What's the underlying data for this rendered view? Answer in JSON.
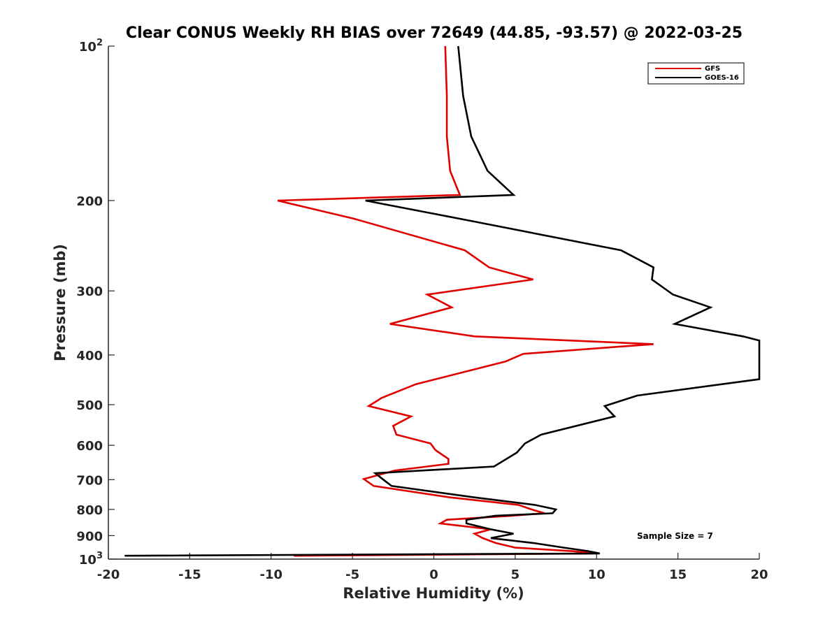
{
  "chart_data": {
    "type": "line",
    "title": "Clear CONUS Weekly RH BIAS over 72649 (44.85, -93.57) @ 2022-03-25",
    "xlabel": "Relative Humidity (%)",
    "ylabel": "Pressure (mb)",
    "xlim": [
      -20,
      20
    ],
    "ylim": [
      100,
      1000
    ],
    "yscale": "log",
    "y_reversed": true,
    "grid": false,
    "legend_position": "top-right",
    "x_ticks": [
      -20,
      -15,
      -10,
      -5,
      0,
      5,
      10,
      15,
      20
    ],
    "x_tick_labels": [
      "-20",
      "-15",
      "-10",
      "-5",
      "0",
      "5",
      "10",
      "15",
      "20"
    ],
    "y_ticks": [
      100,
      200,
      300,
      400,
      500,
      600,
      700,
      800,
      900,
      1000
    ],
    "y_tick_labels": [
      {
        "base": "10",
        "exp": "2"
      },
      {
        "base": "200",
        "exp": ""
      },
      {
        "base": "300",
        "exp": ""
      },
      {
        "base": "400",
        "exp": ""
      },
      {
        "base": "500",
        "exp": ""
      },
      {
        "base": "600",
        "exp": ""
      },
      {
        "base": "700",
        "exp": ""
      },
      {
        "base": "800",
        "exp": ""
      },
      {
        "base": "900",
        "exp": ""
      },
      {
        "base": "10",
        "exp": "3"
      }
    ],
    "annotation": "Sample Size = 7",
    "series": [
      {
        "name": "GFS",
        "color": "#e00000",
        "points": [
          [
            0.7,
            100
          ],
          [
            0.8,
            125
          ],
          [
            0.8,
            150
          ],
          [
            1.0,
            175
          ],
          [
            1.6,
            195
          ],
          [
            -9.6,
            200
          ],
          [
            -4.9,
            217
          ],
          [
            1.9,
            250
          ],
          [
            3.4,
            270
          ],
          [
            6.1,
            285
          ],
          [
            -0.4,
            305
          ],
          [
            1.1,
            323
          ],
          [
            -2.7,
            348
          ],
          [
            2.5,
            368
          ],
          [
            13.5,
            381
          ],
          [
            5.5,
            398
          ],
          [
            4.4,
            412
          ],
          [
            -1.1,
            456
          ],
          [
            -3.2,
            485
          ],
          [
            -4.0,
            503
          ],
          [
            -1.4,
            527
          ],
          [
            -2.5,
            550
          ],
          [
            -2.3,
            572
          ],
          [
            -0.2,
            595
          ],
          [
            0.1,
            613
          ],
          [
            0.9,
            638
          ],
          [
            0.9,
            652
          ],
          [
            -2.4,
            672
          ],
          [
            -4.3,
            698
          ],
          [
            -3.7,
            720
          ],
          [
            1.0,
            758
          ],
          [
            5.2,
            784
          ],
          [
            6.0,
            800
          ],
          [
            6.8,
            814
          ],
          [
            4.8,
            823
          ],
          [
            0.8,
            838
          ],
          [
            0.4,
            852
          ],
          [
            3.5,
            875
          ],
          [
            2.5,
            892
          ],
          [
            3.0,
            910
          ],
          [
            3.8,
            930
          ],
          [
            5.0,
            950
          ],
          [
            8.5,
            965
          ],
          [
            10.0,
            975
          ],
          [
            -8.6,
            985
          ]
        ]
      },
      {
        "name": "GOES-16",
        "color": "#000000",
        "points": [
          [
            1.5,
            100
          ],
          [
            1.8,
            125
          ],
          [
            2.3,
            150
          ],
          [
            3.3,
            175
          ],
          [
            4.9,
            195
          ],
          [
            -4.2,
            200
          ],
          [
            1.6,
            217
          ],
          [
            11.5,
            250
          ],
          [
            13.5,
            270
          ],
          [
            13.4,
            285
          ],
          [
            14.7,
            305
          ],
          [
            17.0,
            323
          ],
          [
            14.8,
            348
          ],
          [
            19.0,
            368
          ],
          [
            20.0,
            375
          ],
          [
            20.0,
            446
          ],
          [
            12.5,
            480
          ],
          [
            10.5,
            503
          ],
          [
            11.1,
            527
          ],
          [
            6.6,
            572
          ],
          [
            5.6,
            595
          ],
          [
            5.1,
            620
          ],
          [
            3.7,
            660
          ],
          [
            -3.6,
            680
          ],
          [
            -3.1,
            700
          ],
          [
            -2.6,
            720
          ],
          [
            2.5,
            758
          ],
          [
            6.2,
            784
          ],
          [
            7.5,
            800
          ],
          [
            7.3,
            814
          ],
          [
            3.8,
            823
          ],
          [
            2.0,
            838
          ],
          [
            2.0,
            852
          ],
          [
            3.5,
            875
          ],
          [
            4.9,
            892
          ],
          [
            3.5,
            910
          ],
          [
            6.1,
            930
          ],
          [
            8.0,
            950
          ],
          [
            9.5,
            965
          ],
          [
            10.2,
            975
          ],
          [
            -19.0,
            985
          ]
        ]
      }
    ]
  }
}
